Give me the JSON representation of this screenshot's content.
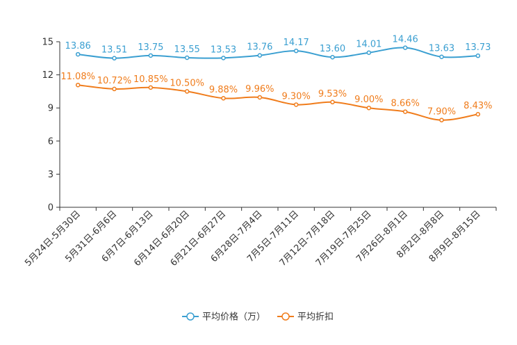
{
  "chart_data": {
    "type": "line",
    "categories": [
      "5月24日-5月30日",
      "5月31日-6月6日",
      "6月7日-6月13日",
      "6月14日-6月20日",
      "6月21日-6月27日",
      "6月28日-7月4日",
      "7月5日-7月11日",
      "7月12日-7月18日",
      "7月19日-7月25日",
      "7月26日-8月1日",
      "8月2日-8月8日",
      "8月9日-8月15日"
    ],
    "ylim": [
      0,
      15
    ],
    "yticks": [
      0,
      3,
      6,
      9,
      12,
      15
    ],
    "series": [
      {
        "name": "平均价格（万）",
        "color": "#3a9fd1",
        "values": [
          13.86,
          13.51,
          13.75,
          13.55,
          13.53,
          13.76,
          14.17,
          13.6,
          14.01,
          14.46,
          13.63,
          13.73
        ],
        "labels": [
          "13.86",
          "13.51",
          "13.75",
          "13.55",
          "13.53",
          "13.76",
          "14.17",
          "13.60",
          "14.01",
          "14.46",
          "13.63",
          "13.73"
        ]
      },
      {
        "name": "平均折扣",
        "color": "#f07c1b",
        "values": [
          11.08,
          10.72,
          10.85,
          10.5,
          9.88,
          9.96,
          9.3,
          9.53,
          9.0,
          8.66,
          7.9,
          8.43
        ],
        "labels": [
          "11.08%",
          "10.72%",
          "10.85%",
          "10.50%",
          "9.88%",
          "9.96%",
          "9.30%",
          "9.53%",
          "9.00%",
          "8.66%",
          "7.90%",
          "8.43%"
        ]
      }
    ],
    "legend_position": "bottom"
  }
}
